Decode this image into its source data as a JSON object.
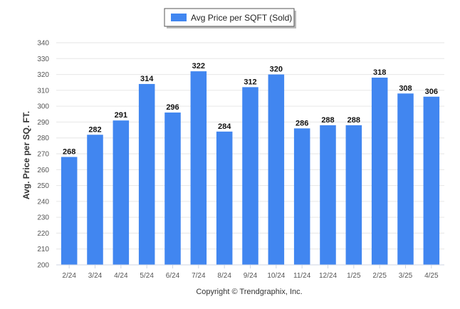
{
  "chart_data": {
    "type": "bar",
    "title": "",
    "xlabel": "",
    "ylabel": "Avg. Price per SQ. FT.",
    "categories": [
      "2/24",
      "3/24",
      "4/24",
      "5/24",
      "6/24",
      "7/24",
      "8/24",
      "9/24",
      "10/24",
      "11/24",
      "12/24",
      "1/25",
      "2/25",
      "3/25",
      "4/25"
    ],
    "series": [
      {
        "name": "Avg Price per SQFT (Sold)",
        "values": [
          268,
          282,
          291,
          314,
          296,
          322,
          284,
          312,
          320,
          286,
          288,
          288,
          318,
          308,
          306
        ],
        "color": "#4186f0"
      }
    ],
    "ylim": [
      200,
      340
    ],
    "yticks": [
      200,
      210,
      220,
      230,
      240,
      250,
      260,
      270,
      280,
      290,
      300,
      310,
      320,
      330,
      340
    ],
    "grid": true,
    "legend_position": "top-center",
    "data_labels": true
  },
  "footer": {
    "copyright": "Copyright © Trendgraphix, Inc."
  }
}
